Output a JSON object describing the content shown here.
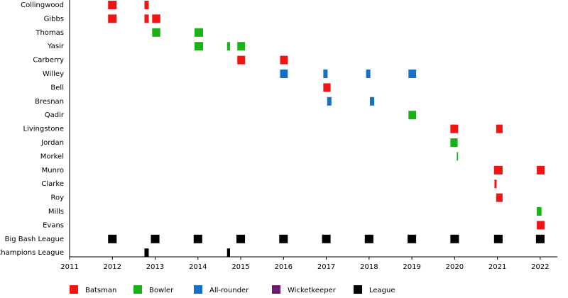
{
  "chart_data": {
    "type": "timeline",
    "xlim": [
      2011,
      2022.4
    ],
    "xticks": [
      2011,
      2012,
      2013,
      2014,
      2015,
      2016,
      2017,
      2018,
      2019,
      2020,
      2021,
      2022
    ],
    "roles": [
      {
        "name": "Batsman",
        "color": "#f01414"
      },
      {
        "name": "Bowler",
        "color": "#19b219"
      },
      {
        "name": "All-rounder",
        "color": "#1470c8"
      },
      {
        "name": "Wicketkeeper",
        "color": "#6e1a70"
      },
      {
        "name": "League",
        "color": "#000000"
      }
    ],
    "rows": [
      {
        "name": "Collingwood",
        "spans": [
          {
            "role": "Batsman",
            "start": 2011.9,
            "end": 2012.1
          },
          {
            "role": "Batsman",
            "start": 2012.75,
            "end": 2012.85
          }
        ]
      },
      {
        "name": "Gibbs",
        "spans": [
          {
            "role": "Batsman",
            "start": 2011.9,
            "end": 2012.1
          },
          {
            "role": "Batsman",
            "start": 2012.75,
            "end": 2012.85
          },
          {
            "role": "Batsman",
            "start": 2012.93,
            "end": 2013.12
          }
        ]
      },
      {
        "name": "Thomas",
        "spans": [
          {
            "role": "Bowler",
            "start": 2012.93,
            "end": 2013.12
          },
          {
            "role": "Bowler",
            "start": 2013.92,
            "end": 2014.12
          }
        ]
      },
      {
        "name": "Yasir",
        "spans": [
          {
            "role": "Bowler",
            "start": 2013.92,
            "end": 2014.12
          },
          {
            "role": "Bowler",
            "start": 2014.68,
            "end": 2014.75
          },
          {
            "role": "Bowler",
            "start": 2014.92,
            "end": 2015.1
          }
        ]
      },
      {
        "name": "Carberry",
        "spans": [
          {
            "role": "Batsman",
            "start": 2014.92,
            "end": 2015.1
          },
          {
            "role": "Batsman",
            "start": 2015.92,
            "end": 2016.1
          }
        ]
      },
      {
        "name": "Willey",
        "spans": [
          {
            "role": "All-rounder",
            "start": 2015.92,
            "end": 2016.1
          },
          {
            "role": "All-rounder",
            "start": 2016.93,
            "end": 2017.03
          },
          {
            "role": "All-rounder",
            "start": 2017.93,
            "end": 2018.03
          },
          {
            "role": "All-rounder",
            "start": 2018.92,
            "end": 2019.1
          }
        ]
      },
      {
        "name": "Bell",
        "spans": [
          {
            "role": "Batsman",
            "start": 2016.93,
            "end": 2017.1
          }
        ]
      },
      {
        "name": "Bresnan",
        "spans": [
          {
            "role": "All-rounder",
            "start": 2017.02,
            "end": 2017.12
          },
          {
            "role": "All-rounder",
            "start": 2018.02,
            "end": 2018.12
          }
        ]
      },
      {
        "name": "Qadir",
        "spans": [
          {
            "role": "Bowler",
            "start": 2018.92,
            "end": 2019.1
          }
        ]
      },
      {
        "name": "Livingstone",
        "spans": [
          {
            "role": "Batsman",
            "start": 2019.9,
            "end": 2020.08
          },
          {
            "role": "Batsman",
            "start": 2020.97,
            "end": 2021.12
          }
        ]
      },
      {
        "name": "Jordan",
        "spans": [
          {
            "role": "Bowler",
            "start": 2019.9,
            "end": 2020.07
          }
        ]
      },
      {
        "name": "Morkel",
        "spans": [
          {
            "role": "Bowler",
            "start": 2020.05,
            "end": 2020.08
          }
        ]
      },
      {
        "name": "Munro",
        "spans": [
          {
            "role": "Batsman",
            "start": 2020.92,
            "end": 2021.12
          },
          {
            "role": "Batsman",
            "start": 2021.92,
            "end": 2022.1
          }
        ]
      },
      {
        "name": "Clarke",
        "spans": [
          {
            "role": "Batsman",
            "start": 2020.93,
            "end": 2020.98
          }
        ]
      },
      {
        "name": "Roy",
        "spans": [
          {
            "role": "Batsman",
            "start": 2020.97,
            "end": 2021.12
          }
        ]
      },
      {
        "name": "Mills",
        "spans": [
          {
            "role": "Bowler",
            "start": 2021.92,
            "end": 2022.03
          }
        ]
      },
      {
        "name": "Evans",
        "spans": [
          {
            "role": "Batsman",
            "start": 2021.92,
            "end": 2022.1
          }
        ]
      },
      {
        "name": "Big Bash League",
        "spans": [
          {
            "role": "League",
            "start": 2011.9,
            "end": 2012.1
          },
          {
            "role": "League",
            "start": 2012.9,
            "end": 2013.1
          },
          {
            "role": "League",
            "start": 2013.9,
            "end": 2014.1
          },
          {
            "role": "League",
            "start": 2014.9,
            "end": 2015.1
          },
          {
            "role": "League",
            "start": 2015.9,
            "end": 2016.1
          },
          {
            "role": "League",
            "start": 2016.9,
            "end": 2017.1
          },
          {
            "role": "League",
            "start": 2017.9,
            "end": 2018.1
          },
          {
            "role": "League",
            "start": 2018.9,
            "end": 2019.1
          },
          {
            "role": "League",
            "start": 2019.9,
            "end": 2020.1
          },
          {
            "role": "League",
            "start": 2020.92,
            "end": 2021.12
          },
          {
            "role": "League",
            "start": 2021.9,
            "end": 2022.1
          }
        ]
      },
      {
        "name": "Champions League",
        "spans": [
          {
            "role": "League",
            "start": 2012.75,
            "end": 2012.85
          },
          {
            "role": "League",
            "start": 2014.68,
            "end": 2014.75
          }
        ]
      }
    ]
  }
}
